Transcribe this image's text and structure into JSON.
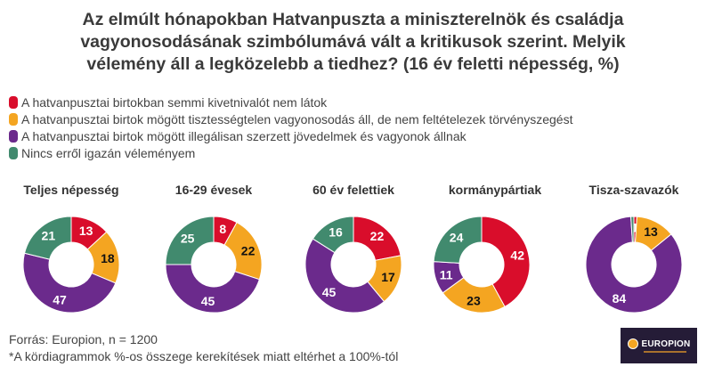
{
  "title": [
    "Az elmúlt hónapokban Hatvanpuszta a miniszterelnök és családja",
    "vagyonosodásának szimbólumává vált a kritikusok szerint. Melyik",
    "vélemény áll a legközelebb a tiedhez? (16 év feletti népesség, %)"
  ],
  "colors": {
    "red": "#d90d2b",
    "orange": "#f4a521",
    "purple": "#6b2a8c",
    "green": "#418a6e"
  },
  "chart_data": {
    "type": "pie",
    "title": "Az elmúlt hónapokban Hatvanpuszta a miniszterelnök és családja vagyonosodásának szimbólumává vált a kritikusok szerint. Melyik vélemény áll a legközelebb a tiedhez? (16 év feletti népesség, %)",
    "donut": true,
    "legend": "top-left",
    "categories": [
      "A hatvanpusztai birtokban semmi kivetnivalót nem látok",
      "A hatvanpusztai birtok mögött tisztességtelen vagyonosodás áll, de nem feltételezek törvényszegést",
      "A hatvanpusztai birtok mögött illegálisan szerzett jövedelmek és vagyonok állnak",
      "Nincs erről igazán véleményem"
    ],
    "category_colors": [
      "#d90d2b",
      "#f4a521",
      "#6b2a8c",
      "#418a6e"
    ],
    "series": [
      {
        "name": "Teljes népesség",
        "values": [
          13,
          18,
          47,
          21
        ],
        "labels": [
          "13",
          "18",
          "47",
          "21"
        ]
      },
      {
        "name": "16-29 évesek",
        "values": [
          8,
          22,
          45,
          25
        ],
        "labels": [
          "8",
          "22",
          "45",
          "25"
        ]
      },
      {
        "name": "60 év felettiek",
        "values": [
          22,
          17,
          45,
          16
        ],
        "labels": [
          "22",
          "17",
          "45",
          "16"
        ]
      },
      {
        "name": "kormánypártiak",
        "values": [
          42,
          23,
          11,
          24
        ],
        "labels": [
          "42",
          "23",
          "11",
          "24"
        ]
      },
      {
        "name": "Tisza-szavazók",
        "values": [
          1,
          13,
          84,
          1
        ],
        "labels": [
          "1",
          "13",
          "84",
          ""
        ]
      }
    ]
  },
  "footer": {
    "source": "Forrás: Europion, n = 1200",
    "note": "*A kördiagrammok %-os összege kerekítések miatt eltérhet a 100%-tól"
  },
  "logo": {
    "text": "EUROPION"
  }
}
